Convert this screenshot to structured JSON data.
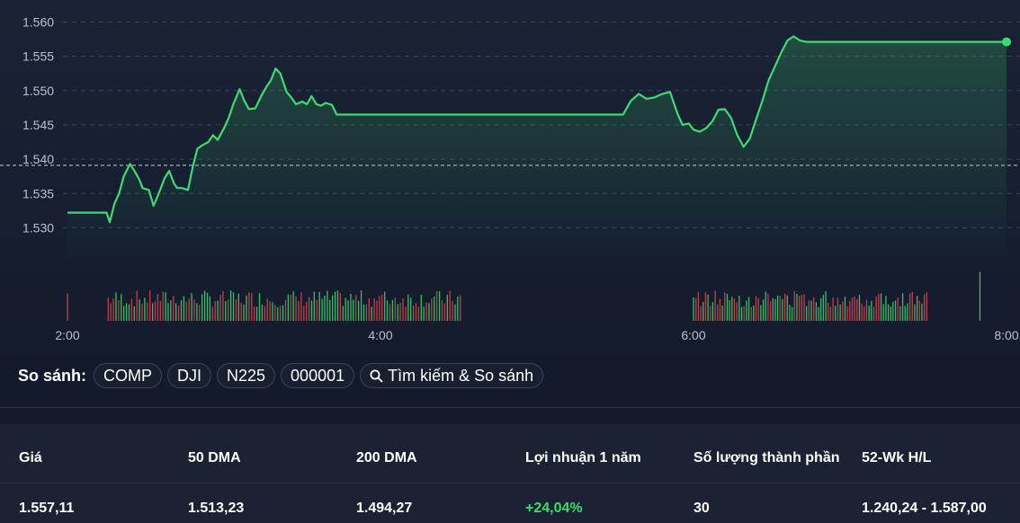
{
  "chart_data": {
    "type": "line",
    "y_ticks": [
      "1.560",
      "1.555",
      "1.550",
      "1.545",
      "1.540",
      "1.535",
      "1.530"
    ],
    "y_tick_values": [
      1560,
      1555,
      1550,
      1545,
      1540,
      1535,
      1530
    ],
    "x_ticks": [
      "2:00",
      "4:00",
      "6:00",
      "8:00"
    ],
    "x_tick_values": [
      2,
      4,
      6,
      8
    ],
    "xlim": [
      2,
      8
    ],
    "ylim": [
      1525.6,
      1561.5
    ],
    "reference_line": 1539.1,
    "grid": true,
    "line_color": "#3ddc6f",
    "up_volume_color": "#3ddc6f",
    "down_volume_color": "#e0464f",
    "series": [
      {
        "x": [
          2.0,
          2.25,
          2.27,
          2.3,
          2.33,
          2.36,
          2.4,
          2.43,
          2.46,
          2.48,
          2.52,
          2.55,
          2.58,
          2.62,
          2.65,
          2.68,
          2.7,
          2.73,
          2.77,
          2.8,
          2.83,
          2.86,
          2.9,
          2.93,
          2.96,
          3.0,
          3.03,
          3.06,
          3.1,
          3.13,
          3.16,
          3.2,
          3.24,
          3.27,
          3.3,
          3.33,
          3.36,
          3.4,
          3.43,
          3.46,
          3.5,
          3.53,
          3.56,
          3.59,
          3.62,
          3.65,
          3.69,
          3.72,
          3.75,
          3.78,
          3.82,
          3.86,
          3.9,
          3.93,
          3.96,
          4.0,
          4.04,
          4.07,
          4.11,
          4.15,
          4.19,
          4.23,
          4.27,
          4.31,
          4.35,
          4.39,
          4.43,
          4.48,
          5.55,
          5.6,
          5.65,
          5.7,
          5.75,
          5.8,
          5.85,
          5.9,
          5.93,
          5.97,
          6.0,
          6.04,
          6.08,
          6.12,
          6.16,
          6.2,
          6.24,
          6.28,
          6.32,
          6.36,
          6.4,
          6.44,
          6.48,
          6.52,
          6.56,
          6.6,
          6.64,
          6.68,
          6.72,
          6.76,
          6.8,
          6.83,
          6.86,
          6.89,
          6.92,
          6.96,
          7.0,
          7.04,
          7.08,
          7.12,
          7.17,
          7.22,
          7.25,
          7.31,
          7.36,
          8.0
        ],
        "y": [
          1532.2,
          1532.2,
          1530.8,
          1533.5,
          1535.0,
          1537.5,
          1539.3,
          1538.2,
          1537.0,
          1535.8,
          1535.5,
          1533.2,
          1534.8,
          1537.2,
          1538.3,
          1536.5,
          1535.8,
          1535.8,
          1535.5,
          1538.8,
          1541.5,
          1542.0,
          1542.5,
          1543.5,
          1542.8,
          1544.5,
          1546.0,
          1548.0,
          1550.2,
          1548.5,
          1547.3,
          1547.4,
          1549.3,
          1550.5,
          1551.5,
          1553.2,
          1552.5,
          1549.8,
          1549.0,
          1548.0,
          1548.4,
          1548.0,
          1549.2,
          1548.0,
          1547.8,
          1548.2,
          1547.9,
          1546.5,
          1546.5,
          1546.5,
          1546.5,
          1546.5,
          1546.5,
          1546.5,
          1546.5,
          1546.5,
          1546.5,
          1546.5,
          1546.5,
          1546.5,
          1546.5,
          1546.5,
          1546.5,
          1546.5,
          1546.5,
          1546.5,
          1546.5,
          1546.5,
          1546.5,
          1548.5,
          1549.5,
          1548.8,
          1549.0,
          1549.5,
          1549.8,
          1546.5,
          1545.0,
          1545.2,
          1544.3,
          1544.0,
          1544.5,
          1545.5,
          1547.2,
          1547.3,
          1546.0,
          1543.5,
          1541.8,
          1543.0,
          1545.8,
          1548.5,
          1551.5,
          1553.5,
          1555.5,
          1557.3,
          1557.9,
          1557.3,
          1557.1,
          1557.1,
          1557.1,
          1557.1,
          1557.1,
          1557.1,
          1557.1,
          1557.1,
          1557.1,
          1557.1,
          1557.1,
          1557.1,
          1557.1,
          1557.1,
          1557.1,
          1557.1,
          1557.1,
          1557.1
        ]
      }
    ],
    "volume_sessions": [
      {
        "x_start": 2.0,
        "x_end": 2.0,
        "bars": 1,
        "seed": 1,
        "max": 0.9
      },
      {
        "x_start": 2.26,
        "x_end": 4.51,
        "bars": 136,
        "seed": 7,
        "max": 1.0
      },
      {
        "x_start": 6.0,
        "x_end": 7.49,
        "bars": 98,
        "seed": 13,
        "max": 1.0
      },
      {
        "x_start": 7.83,
        "x_end": 7.83,
        "bars": 1,
        "seed": 3,
        "max": 1.6
      }
    ]
  },
  "compare": {
    "label": "So sánh:",
    "items": [
      "COMP",
      "DJI",
      "N225",
      "000001"
    ],
    "search_label": "Tìm kiếm & So sánh"
  },
  "stats": [
    {
      "label": "Giá",
      "value": "1.557,11",
      "positive": false
    },
    {
      "label": "50 DMA",
      "value": "1.513,23",
      "positive": false
    },
    {
      "label": "200 DMA",
      "value": "1.494,27",
      "positive": false
    },
    {
      "label": "Lợi nhuận 1 năm",
      "value": "+24,04%",
      "positive": true
    },
    {
      "label": "Số lượng thành phần",
      "value": "30",
      "positive": false
    },
    {
      "label": "52-Wk H/L",
      "value": "1.240,24 - 1.587,00",
      "positive": false
    }
  ]
}
